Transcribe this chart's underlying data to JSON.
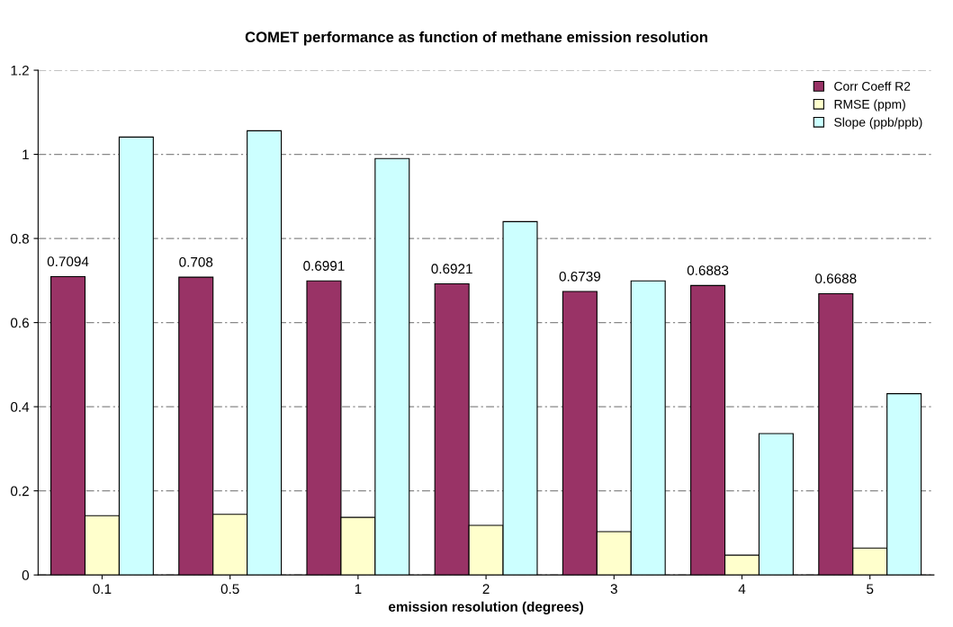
{
  "chart_data": {
    "type": "bar",
    "title": "COMET performance as function of methane emission resolution",
    "xlabel": "emission resolution (degrees)",
    "categories": [
      "0.1",
      "0.5",
      "1",
      "2",
      "3",
      "4",
      "5"
    ],
    "series": [
      {
        "name": "Corr Coeff R2",
        "color": "#993366",
        "values": [
          0.7094,
          0.708,
          0.6991,
          0.6921,
          0.6739,
          0.6883,
          0.6688
        ],
        "value_labels": [
          "0.7094",
          "0.708",
          "0.6991",
          "0.6921",
          "0.6739",
          "0.6883",
          "0.6688"
        ]
      },
      {
        "name": "RMSE (ppm)",
        "color": "#ffffcc",
        "values": [
          0.141,
          0.144,
          0.137,
          0.118,
          0.103,
          0.047,
          0.064
        ]
      },
      {
        "name": "Slope (ppb/ppb)",
        "color": "#ccffff",
        "values": [
          1.041,
          1.056,
          0.99,
          0.84,
          0.699,
          0.336,
          0.431
        ]
      }
    ],
    "ylim": [
      0,
      1.2
    ],
    "yticks": [
      0,
      0.2,
      0.4,
      0.6,
      0.8,
      1,
      1.2
    ],
    "grid": "y",
    "legend": "top right"
  }
}
